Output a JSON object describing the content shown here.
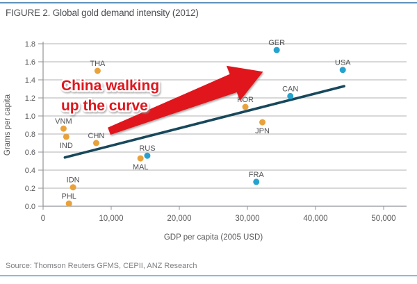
{
  "header": {
    "title": "FIGURE 2. Global gold demand intensity (2012)"
  },
  "source": {
    "text": "Source: Thomson Reuters GFMS, CEPII, ANZ Research"
  },
  "colors": {
    "rule_blue": "#5e93b8",
    "grid": "#b0b0b0",
    "axis": "#909296",
    "tick_text": "#58595b",
    "label_text": "#4f5154",
    "emerging_dot": "#e9a23b",
    "developed_dot": "#25a3ce",
    "trend_line": "#17485c",
    "annotation_red": "#e0121b"
  },
  "chart_data": {
    "type": "scatter",
    "title": "FIGURE 2. Global gold demand intensity (2012)",
    "xlabel": "GDP per capita (2005 USD)",
    "ylabel": "Grams per capita",
    "xlim": [
      0,
      53500
    ],
    "ylim": [
      0,
      1.8
    ],
    "grid": "horizontal",
    "legend": "none",
    "x_ticks": [
      {
        "value": 0,
        "label": "0"
      },
      {
        "value": 10000,
        "label": "10,000"
      },
      {
        "value": 20000,
        "label": "20,000"
      },
      {
        "value": 30000,
        "label": "30,000"
      },
      {
        "value": 40000,
        "label": "40,000"
      },
      {
        "value": 50000,
        "label": "50,000"
      }
    ],
    "y_ticks": [
      {
        "value": 0.0,
        "label": "0.0"
      },
      {
        "value": 0.2,
        "label": "0.2"
      },
      {
        "value": 0.4,
        "label": "0.4"
      },
      {
        "value": 0.6,
        "label": "0.6"
      },
      {
        "value": 0.8,
        "label": "0.8"
      },
      {
        "value": 1.0,
        "label": "1.0"
      },
      {
        "value": 1.2,
        "label": "1.2"
      },
      {
        "value": 1.4,
        "label": "1.4"
      },
      {
        "value": 1.6,
        "label": "1.6"
      },
      {
        "value": 1.8,
        "label": "1.8"
      }
    ],
    "point_groups": {
      "emerging": "#e9a23b",
      "developed": "#25a3ce"
    },
    "points": [
      {
        "label": "VNM",
        "x": 3000,
        "y": 0.86,
        "group": "emerging",
        "label_pos": "above"
      },
      {
        "label": "IND",
        "x": 3400,
        "y": 0.77,
        "group": "emerging",
        "label_pos": "below"
      },
      {
        "label": "CHN",
        "x": 7800,
        "y": 0.7,
        "group": "emerging",
        "label_pos": "above"
      },
      {
        "label": "THA",
        "x": 8000,
        "y": 1.5,
        "group": "emerging",
        "label_pos": "above"
      },
      {
        "label": "IDN",
        "x": 4400,
        "y": 0.21,
        "group": "emerging",
        "label_pos": "above"
      },
      {
        "label": "PHL",
        "x": 3800,
        "y": 0.03,
        "group": "emerging",
        "label_pos": "above"
      },
      {
        "label": "MAL",
        "x": 14300,
        "y": 0.53,
        "group": "emerging",
        "label_pos": "below"
      },
      {
        "label": "RUS",
        "x": 15300,
        "y": 0.56,
        "group": "developed",
        "label_pos": "above"
      },
      {
        "label": "KOR",
        "x": 29700,
        "y": 1.1,
        "group": "emerging",
        "label_pos": "above"
      },
      {
        "label": "JPN",
        "x": 32200,
        "y": 0.93,
        "group": "emerging",
        "label_pos": "below"
      },
      {
        "label": "FRA",
        "x": 31300,
        "y": 0.27,
        "group": "developed",
        "label_pos": "above"
      },
      {
        "label": "GER",
        "x": 34300,
        "y": 1.73,
        "group": "developed",
        "label_pos": "above"
      },
      {
        "label": "CAN",
        "x": 36300,
        "y": 1.22,
        "group": "developed",
        "label_pos": "above"
      },
      {
        "label": "USA",
        "x": 44000,
        "y": 1.51,
        "group": "developed",
        "label_pos": "above"
      }
    ],
    "trend_line": {
      "x1": 3200,
      "y1": 0.54,
      "x2": 44200,
      "y2": 1.33,
      "color": "#17485c"
    },
    "annotation": {
      "lines": [
        "China walking",
        "up the curve"
      ],
      "color": "#e0121b",
      "text_anchor": {
        "x": 2650,
        "y_baselines": [
          1.285,
          1.062
        ]
      },
      "arrow": {
        "from": {
          "x": 9700,
          "y": 0.831
        },
        "to": {
          "x": 32300,
          "y": 1.49
        }
      }
    }
  }
}
